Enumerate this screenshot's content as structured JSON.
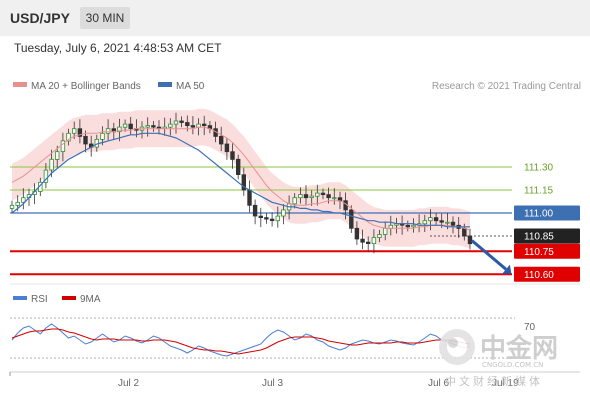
{
  "header": {
    "symbol": "USD/JPY",
    "timeframe": "30 MIN"
  },
  "timestamp": "Tuesday, July 6, 2021 4:48:53 AM CET",
  "credit": "Research © 2021 Trading Central",
  "colors": {
    "bollinger": "#f3b5b5",
    "ma20": "#e89090",
    "ma50": "#3d6fb3",
    "green_level": "#8dc63f",
    "blue_level": "#3d6fb3",
    "red_level": "#e00000",
    "dark_label": "#222222",
    "rsi": "#4a7fd4",
    "rsi_ma": "#d10000",
    "arrow": "#2b5aa8"
  },
  "watermark": {
    "name": "中金网",
    "domain": "CNGOLD.COM.CN",
    "slogan": "中文财经新媒体"
  },
  "chart_data": [
    {
      "type": "line",
      "subtype": "candlestick",
      "legend": [
        {
          "name": "MA 20 + Bollinger Bands",
          "color": "#e89090"
        },
        {
          "name": "MA 50",
          "color": "#3d6fb3"
        }
      ],
      "y_range": [
        110.55,
        111.75
      ],
      "x_ticks": [
        "Jul 2",
        "Jul 3",
        "Jul 6",
        "Jul 19"
      ],
      "levels": [
        {
          "value": 111.3,
          "label": "111.30",
          "style": "green-line"
        },
        {
          "value": 111.15,
          "label": "111.15",
          "style": "green-line"
        },
        {
          "value": 111.0,
          "label": "111.00",
          "style": "blue-box"
        },
        {
          "value": 110.85,
          "label": "110.85",
          "style": "dark-box"
        },
        {
          "value": 110.75,
          "label": "110.75",
          "style": "red-box"
        },
        {
          "value": 110.6,
          "label": "110.60",
          "style": "red-box"
        }
      ],
      "closes": [
        111.05,
        111.07,
        111.1,
        111.12,
        111.14,
        111.2,
        111.28,
        111.35,
        111.4,
        111.47,
        111.52,
        111.55,
        111.5,
        111.45,
        111.43,
        111.48,
        111.52,
        111.55,
        111.53,
        111.56,
        111.58,
        111.55,
        111.54,
        111.56,
        111.57,
        111.56,
        111.55,
        111.56,
        111.58,
        111.6,
        111.59,
        111.57,
        111.56,
        111.58,
        111.57,
        111.55,
        111.5,
        111.45,
        111.4,
        111.35,
        111.25,
        111.15,
        111.05,
        110.98,
        110.97,
        110.96,
        110.95,
        110.98,
        111.02,
        111.06,
        111.1,
        111.12,
        111.1,
        111.11,
        111.13,
        111.12,
        111.1,
        111.1,
        111.08,
        111.02,
        110.9,
        110.83,
        110.81,
        110.8,
        110.84,
        110.86,
        110.9,
        110.92,
        110.93,
        110.92,
        110.91,
        110.92,
        110.93,
        110.95,
        110.97,
        110.95,
        110.94,
        110.94,
        110.92,
        110.9,
        110.85,
        110.8
      ],
      "ma20": [
        111.2,
        111.22,
        111.24,
        111.27,
        111.3,
        111.33,
        111.36,
        111.39,
        111.42,
        111.45,
        111.48,
        111.5,
        111.51,
        111.52,
        111.52,
        111.52,
        111.53,
        111.53,
        111.53,
        111.54,
        111.54,
        111.54,
        111.55,
        111.55,
        111.55,
        111.55,
        111.55,
        111.55,
        111.55,
        111.55,
        111.55,
        111.55,
        111.55,
        111.56,
        111.56,
        111.55,
        111.53,
        111.51,
        111.49,
        111.46,
        111.42,
        111.38,
        111.33,
        111.28,
        111.23,
        111.18,
        111.14,
        111.11,
        111.08,
        111.06,
        111.05,
        111.05,
        111.05,
        111.06,
        111.06,
        111.07,
        111.08,
        111.08,
        111.08,
        111.06,
        111.03,
        111.0,
        110.97,
        110.94,
        110.92,
        110.91,
        110.9,
        110.9,
        110.9,
        110.9,
        110.9,
        110.9,
        110.91,
        110.91,
        110.92,
        110.92,
        110.92,
        110.92,
        110.91,
        110.91,
        110.9,
        110.89
      ],
      "ma50": [
        111.0,
        111.03,
        111.06,
        111.1,
        111.14,
        111.18,
        111.22,
        111.26,
        111.29,
        111.32,
        111.35,
        111.37,
        111.39,
        111.41,
        111.43,
        111.45,
        111.46,
        111.47,
        111.48,
        111.49,
        111.5,
        111.51,
        111.51,
        111.52,
        111.52,
        111.52,
        111.52,
        111.51,
        111.5,
        111.49,
        111.47,
        111.45,
        111.43,
        111.41,
        111.38,
        111.35,
        111.32,
        111.29,
        111.26,
        111.23,
        111.2,
        111.17,
        111.15,
        111.13,
        111.11,
        111.09,
        111.07,
        111.06,
        111.05,
        111.04,
        111.04,
        111.03,
        111.03,
        111.02,
        111.02,
        111.01,
        111.01,
        111.0,
        111.0,
        110.99,
        110.98,
        110.97,
        110.96,
        110.95,
        110.95,
        110.94,
        110.94,
        110.94,
        110.93,
        110.93,
        110.93,
        110.93,
        110.92,
        110.92,
        110.92,
        110.92,
        110.92,
        110.91,
        110.91,
        110.91,
        110.91,
        110.91
      ],
      "forecast_arrow": {
        "from": 110.82,
        "to": 110.62
      }
    },
    {
      "type": "line",
      "title": "RSI",
      "legend": [
        {
          "name": "RSI",
          "color": "#4a7fd4"
        },
        {
          "name": "9MA",
          "color": "#d10000"
        }
      ],
      "y_range": [
        20,
        80
      ],
      "ticks": [
        "70"
      ],
      "rsi": [
        48,
        55,
        60,
        62,
        58,
        54,
        60,
        64,
        60,
        55,
        50,
        52,
        48,
        44,
        46,
        50,
        54,
        50,
        46,
        48,
        52,
        50,
        47,
        45,
        48,
        52,
        50,
        46,
        42,
        40,
        38,
        35,
        38,
        42,
        40,
        37,
        35,
        33,
        32,
        34,
        36,
        38,
        40,
        42,
        44,
        50,
        55,
        58,
        56,
        52,
        48,
        50,
        54,
        52,
        48,
        46,
        42,
        40,
        38,
        40,
        44,
        46,
        48,
        47,
        45,
        44,
        46,
        48,
        47,
        45,
        44,
        43,
        46,
        50,
        54,
        52,
        48,
        46,
        44,
        42,
        40,
        42
      ],
      "rsi_ma": [
        50,
        52,
        54,
        56,
        57,
        57,
        58,
        59,
        59,
        58,
        56,
        55,
        53,
        51,
        49,
        48,
        49,
        49,
        49,
        48,
        48,
        48,
        48,
        47,
        47,
        48,
        48,
        48,
        47,
        46,
        44,
        42,
        40,
        39,
        38,
        38,
        37,
        37,
        36,
        35,
        34,
        35,
        36,
        37,
        38,
        40,
        43,
        46,
        48,
        50,
        51,
        51,
        51,
        51,
        50,
        49,
        47,
        46,
        45,
        44,
        43,
        43,
        44,
        45,
        45,
        45,
        45,
        45,
        46,
        46,
        45,
        45,
        45,
        46,
        47,
        48,
        48,
        48,
        47,
        46,
        45,
        44
      ]
    }
  ]
}
